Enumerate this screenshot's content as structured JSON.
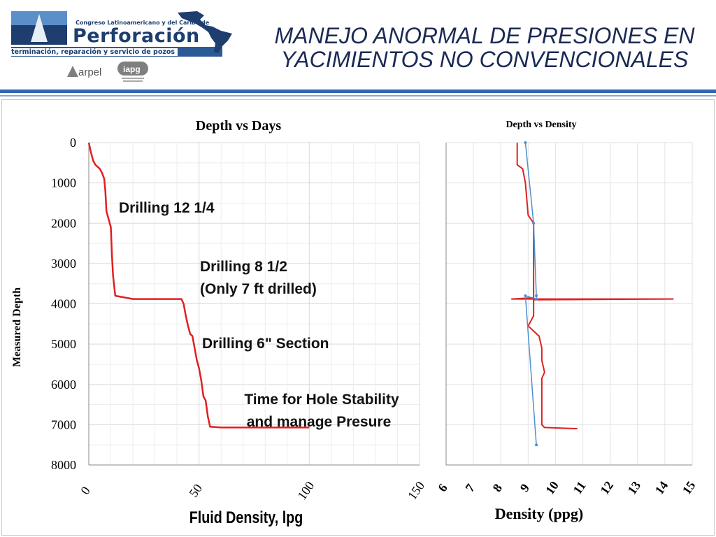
{
  "slide": {
    "title_line1": "MANEJO ANORMAL DE PRESIONES EN",
    "title_line2": "YACIMIENTOS NO CONVENCIONALES"
  },
  "logo": {
    "small_text": "Congreso Latinoamericano y del Caribe de",
    "big_text": "Perforación",
    "subtitle": "terminación, reparación y servicio de pozos",
    "sponsor1": "arpel",
    "sponsor2": "iapg"
  },
  "colors": {
    "brand_blue": "#1d3e6e",
    "rule_blue": "#2f67b2",
    "series_red": "#e02020",
    "series_blue": "#4f8fd0"
  },
  "chart_data": [
    {
      "type": "line",
      "title": "Depth vs Days",
      "xlabel": "Fluid Density, lpg",
      "ylabel": "Measured Depth",
      "xlim": [
        0,
        150
      ],
      "ylim": [
        0,
        8000
      ],
      "y_inverted": true,
      "x_ticks": [
        "0",
        "50",
        "100",
        "150"
      ],
      "y_ticks": [
        "0",
        "1000",
        "2000",
        "3000",
        "4000",
        "5000",
        "6000",
        "7000",
        "8000"
      ],
      "grid": "horizontal and vertical",
      "series": [
        {
          "color": "#e02020",
          "x": [
            0,
            1,
            2,
            3,
            5,
            6,
            7,
            7.5,
            8,
            9,
            10,
            10.5,
            11,
            12,
            20,
            40,
            42,
            43,
            44,
            45,
            46,
            47,
            48,
            49,
            50,
            51,
            52,
            53,
            54,
            55,
            60,
            80,
            100
          ],
          "y": [
            0,
            250,
            450,
            550,
            650,
            750,
            900,
            1200,
            1700,
            1900,
            2100,
            2800,
            3300,
            3800,
            3880,
            3880,
            3880,
            4000,
            4300,
            4550,
            4750,
            4800,
            5100,
            5400,
            5600,
            5900,
            6300,
            6400,
            6800,
            7050,
            7070,
            7070,
            7070
          ]
        }
      ],
      "annotations": [
        "Drilling 12 1/4",
        "Drilling 8 1/2",
        "(Only 7 ft drilled)",
        "Drilling 6\" Section",
        "Time for Hole Stability",
        "and manage Presure"
      ]
    },
    {
      "type": "line",
      "title": "Depth vs Density",
      "xlabel": "Density (ppg)",
      "ylabel": "",
      "xlim": [
        6,
        15
      ],
      "ylim": [
        0,
        8000
      ],
      "y_inverted": true,
      "x_ticks": [
        "6",
        "7",
        "8",
        "9",
        "10",
        "11",
        "12",
        "13",
        "14",
        "15"
      ],
      "grid": "horizontal and vertical",
      "series": [
        {
          "color": "#e02020",
          "x": [
            8.6,
            8.6,
            8.8,
            8.9,
            9.0,
            9.2,
            9.2,
            8.4,
            14.3,
            9.2,
            9.2,
            9.0,
            9.4,
            9.5,
            9.5,
            9.6,
            9.5,
            9.5,
            9.5,
            9.6,
            10.8
          ],
          "y": [
            0,
            550,
            650,
            1000,
            1800,
            2000,
            3850,
            3880,
            3880,
            3900,
            4300,
            4550,
            4800,
            5100,
            5400,
            5700,
            5850,
            6000,
            7000,
            7070,
            7100
          ]
        },
        {
          "color": "#4f8fd0",
          "x": [
            8.9,
            9.2,
            9.3,
            9.3,
            8.9,
            9.3
          ],
          "y": [
            0,
            2000,
            3800,
            3880,
            3800,
            7500
          ]
        }
      ]
    }
  ]
}
